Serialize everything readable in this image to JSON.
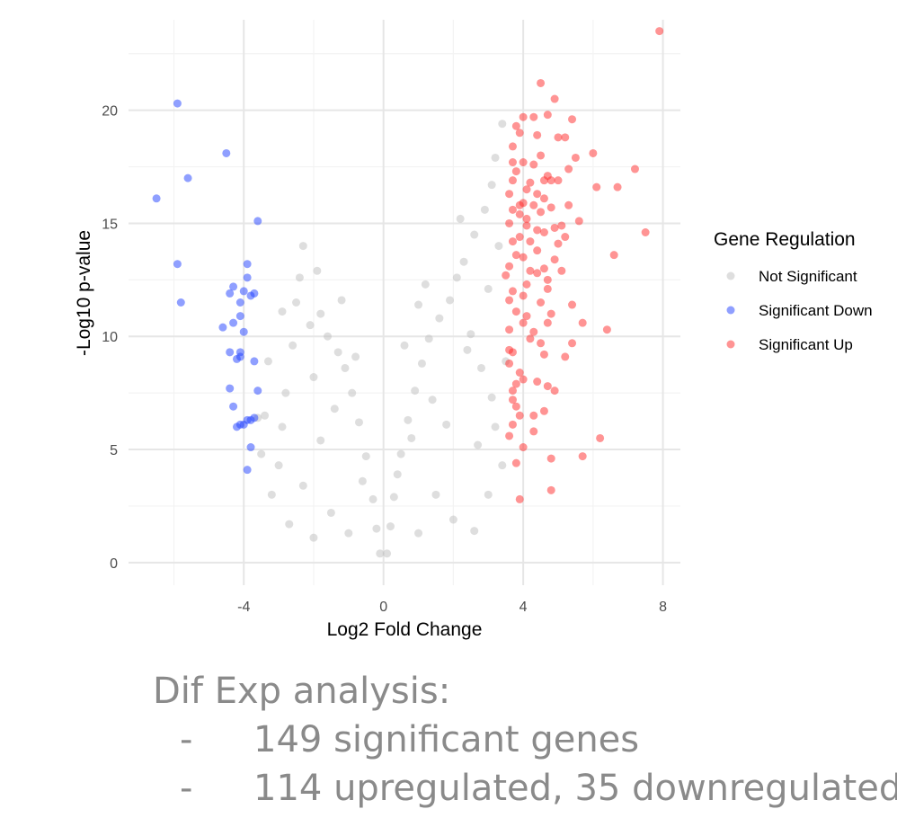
{
  "chart_data": {
    "type": "scatter",
    "title": "",
    "xlabel": "Log2 Fold Change",
    "ylabel": "-Log10 p-value",
    "xlim": [
      -7.3,
      8.5
    ],
    "ylim": [
      -1,
      24
    ],
    "x_ticks": [
      -4,
      0,
      4,
      8
    ],
    "y_ticks": [
      0,
      5,
      10,
      15,
      20
    ],
    "grid": true,
    "legend": {
      "title": "Gene Regulation",
      "position": "right"
    },
    "series": [
      {
        "name": "Not Significant",
        "color": "#bdbdbd",
        "points": [
          [
            -3.2,
            3.0
          ],
          [
            -3.0,
            4.3
          ],
          [
            -2.9,
            6.0
          ],
          [
            -2.8,
            7.5
          ],
          [
            -3.3,
            8.9
          ],
          [
            -2.6,
            9.6
          ],
          [
            -3.4,
            6.5
          ],
          [
            -2.5,
            11.5
          ],
          [
            -2.4,
            12.6
          ],
          [
            -2.3,
            14.0
          ],
          [
            -2.1,
            10.5
          ],
          [
            -1.9,
            12.9
          ],
          [
            -1.8,
            11.0
          ],
          [
            -1.6,
            10.0
          ],
          [
            -1.3,
            9.3
          ],
          [
            -1.1,
            8.6
          ],
          [
            -0.9,
            7.5
          ],
          [
            -0.7,
            6.2
          ],
          [
            -0.5,
            4.7
          ],
          [
            -0.3,
            2.8
          ],
          [
            -0.2,
            1.5
          ],
          [
            -0.1,
            0.4
          ],
          [
            0.1,
            0.4
          ],
          [
            0.2,
            1.6
          ],
          [
            0.3,
            2.9
          ],
          [
            0.5,
            4.8
          ],
          [
            0.7,
            6.3
          ],
          [
            0.9,
            7.6
          ],
          [
            1.1,
            8.8
          ],
          [
            1.3,
            9.9
          ],
          [
            1.6,
            10.8
          ],
          [
            1.9,
            11.6
          ],
          [
            2.1,
            12.6
          ],
          [
            2.3,
            13.3
          ],
          [
            2.6,
            14.5
          ],
          [
            2.9,
            15.6
          ],
          [
            3.1,
            16.7
          ],
          [
            3.2,
            17.9
          ],
          [
            3.4,
            19.4
          ],
          [
            3.0,
            12.1
          ],
          [
            2.5,
            10.1
          ],
          [
            2.8,
            8.6
          ],
          [
            3.2,
            6.0
          ],
          [
            3.0,
            3.0
          ],
          [
            2.6,
            1.4
          ],
          [
            2.0,
            1.9
          ],
          [
            1.5,
            3.0
          ],
          [
            -1.5,
            2.2
          ],
          [
            -2.0,
            1.1
          ],
          [
            -2.7,
            1.7
          ],
          [
            -1.0,
            1.3
          ],
          [
            1.0,
            1.3
          ],
          [
            1.8,
            6.1
          ],
          [
            -1.8,
            5.4
          ],
          [
            -2.3,
            3.4
          ],
          [
            0.6,
            9.6
          ],
          [
            1.0,
            11.4
          ],
          [
            1.2,
            12.3
          ],
          [
            -1.2,
            11.6
          ],
          [
            -0.8,
            9.1
          ],
          [
            2.2,
            15.2
          ],
          [
            3.3,
            14.0
          ],
          [
            3.5,
            8.9
          ],
          [
            3.4,
            4.3
          ],
          [
            3.1,
            7.3
          ],
          [
            2.7,
            5.2
          ],
          [
            -3.5,
            4.8
          ],
          [
            -3.6,
            6.4
          ],
          [
            -2.9,
            11.1
          ],
          [
            -2.0,
            8.2
          ],
          [
            -1.4,
            6.8
          ],
          [
            -0.6,
            3.6
          ],
          [
            0.4,
            3.9
          ],
          [
            0.8,
            5.5
          ],
          [
            1.4,
            7.2
          ],
          [
            2.4,
            9.4
          ]
        ]
      },
      {
        "name": "Significant Down",
        "color": "#1f3fff",
        "points": [
          [
            -5.9,
            20.3
          ],
          [
            -4.5,
            18.1
          ],
          [
            -5.6,
            17.0
          ],
          [
            -6.5,
            16.1
          ],
          [
            -3.6,
            15.1
          ],
          [
            -5.9,
            13.2
          ],
          [
            -3.9,
            13.2
          ],
          [
            -3.9,
            12.6
          ],
          [
            -4.3,
            12.2
          ],
          [
            -4.4,
            11.9
          ],
          [
            -3.7,
            11.9
          ],
          [
            -5.8,
            11.5
          ],
          [
            -4.1,
            11.5
          ],
          [
            -4.1,
            10.9
          ],
          [
            -4.3,
            10.6
          ],
          [
            -4.6,
            10.4
          ],
          [
            -4.0,
            10.2
          ],
          [
            -4.4,
            9.3
          ],
          [
            -4.1,
            9.3
          ],
          [
            -4.1,
            9.1
          ],
          [
            -3.7,
            8.9
          ],
          [
            -4.4,
            7.7
          ],
          [
            -3.6,
            7.6
          ],
          [
            -4.3,
            6.9
          ],
          [
            -3.8,
            6.3
          ],
          [
            -3.9,
            6.3
          ],
          [
            -4.1,
            6.1
          ],
          [
            -4.2,
            6.0
          ],
          [
            -3.8,
            5.1
          ],
          [
            -3.9,
            4.1
          ],
          [
            -3.7,
            6.4
          ],
          [
            -4.0,
            6.1
          ],
          [
            -3.8,
            11.8
          ],
          [
            -4.2,
            9.0
          ],
          [
            -4.0,
            12.0
          ]
        ]
      },
      {
        "name": "Significant Up",
        "color": "#ff2a2a",
        "points": [
          [
            7.9,
            23.5
          ],
          [
            4.5,
            21.2
          ],
          [
            4.9,
            20.5
          ],
          [
            4.7,
            19.8
          ],
          [
            4.0,
            19.7
          ],
          [
            4.3,
            19.7
          ],
          [
            5.4,
            19.6
          ],
          [
            3.8,
            19.3
          ],
          [
            3.9,
            19.0
          ],
          [
            5.2,
            18.8
          ],
          [
            5.0,
            18.8
          ],
          [
            6.0,
            18.1
          ],
          [
            4.5,
            18.0
          ],
          [
            3.7,
            17.7
          ],
          [
            4.0,
            17.7
          ],
          [
            4.3,
            17.6
          ],
          [
            7.2,
            17.4
          ],
          [
            5.3,
            17.4
          ],
          [
            3.8,
            17.3
          ],
          [
            4.7,
            17.1
          ],
          [
            4.8,
            16.9
          ],
          [
            4.6,
            16.9
          ],
          [
            5.0,
            16.9
          ],
          [
            6.1,
            16.6
          ],
          [
            6.7,
            16.6
          ],
          [
            4.1,
            16.5
          ],
          [
            3.6,
            16.3
          ],
          [
            4.4,
            16.3
          ],
          [
            4.6,
            16.1
          ],
          [
            3.9,
            15.8
          ],
          [
            4.0,
            15.9
          ],
          [
            4.3,
            15.8
          ],
          [
            5.3,
            15.8
          ],
          [
            3.7,
            15.6
          ],
          [
            4.5,
            15.5
          ],
          [
            3.6,
            15.0
          ],
          [
            4.1,
            14.9
          ],
          [
            4.6,
            14.6
          ],
          [
            4.9,
            14.8
          ],
          [
            7.5,
            14.6
          ],
          [
            3.7,
            14.2
          ],
          [
            3.9,
            14.4
          ],
          [
            4.2,
            14.2
          ],
          [
            5.0,
            14.1
          ],
          [
            5.2,
            14.4
          ],
          [
            4.4,
            13.8
          ],
          [
            6.6,
            13.6
          ],
          [
            4.0,
            13.5
          ],
          [
            3.6,
            13.1
          ],
          [
            4.6,
            13.0
          ],
          [
            4.4,
            12.8
          ],
          [
            3.5,
            12.7
          ],
          [
            4.1,
            12.3
          ],
          [
            4.7,
            12.5
          ],
          [
            3.7,
            12.0
          ],
          [
            4.0,
            11.8
          ],
          [
            3.6,
            11.6
          ],
          [
            5.4,
            11.4
          ],
          [
            3.8,
            11.1
          ],
          [
            4.1,
            10.9
          ],
          [
            4.7,
            10.6
          ],
          [
            5.7,
            10.6
          ],
          [
            3.6,
            10.3
          ],
          [
            4.3,
            10.2
          ],
          [
            4.5,
            9.7
          ],
          [
            5.4,
            9.7
          ],
          [
            3.6,
            9.4
          ],
          [
            3.7,
            9.3
          ],
          [
            4.4,
            8.0
          ],
          [
            4.7,
            7.8
          ],
          [
            3.7,
            7.6
          ],
          [
            4.9,
            7.6
          ],
          [
            3.7,
            7.2
          ],
          [
            3.8,
            6.9
          ],
          [
            4.6,
            6.7
          ],
          [
            4.3,
            6.5
          ],
          [
            3.9,
            6.5
          ],
          [
            3.7,
            6.1
          ],
          [
            6.2,
            5.5
          ],
          [
            4.0,
            5.1
          ],
          [
            3.8,
            4.4
          ],
          [
            5.7,
            4.7
          ],
          [
            4.8,
            4.6
          ],
          [
            4.8,
            3.2
          ],
          [
            3.9,
            2.8
          ],
          [
            4.2,
            9.9
          ],
          [
            3.9,
            8.4
          ],
          [
            5.1,
            12.9
          ],
          [
            4.8,
            11.0
          ],
          [
            3.6,
            8.8
          ],
          [
            4.9,
            13.4
          ],
          [
            4.2,
            16.8
          ],
          [
            3.7,
            18.4
          ],
          [
            4.4,
            18.9
          ],
          [
            5.6,
            15.1
          ],
          [
            4.0,
            10.6
          ],
          [
            4.6,
            9.2
          ],
          [
            3.8,
            13.6
          ],
          [
            4.1,
            15.2
          ],
          [
            5.5,
            17.9
          ],
          [
            4.3,
            5.8
          ],
          [
            3.9,
            15.4
          ],
          [
            4.7,
            12.1
          ],
          [
            5.1,
            14.9
          ],
          [
            4.5,
            11.5
          ],
          [
            3.6,
            5.6
          ],
          [
            4.2,
            12.9
          ],
          [
            6.4,
            10.3
          ],
          [
            4.0,
            8.1
          ],
          [
            5.2,
            9.1
          ],
          [
            3.7,
            16.9
          ],
          [
            4.4,
            14.7
          ],
          [
            4.8,
            15.7
          ],
          [
            3.8,
            7.9
          ]
        ]
      }
    ]
  },
  "notes": {
    "heading": "Dif Exp analysis:",
    "bullets": [
      {
        "dash": "-",
        "text": "149 significant genes"
      },
      {
        "dash": "-",
        "text": "114 upregulated, 35 downregulated"
      }
    ]
  }
}
